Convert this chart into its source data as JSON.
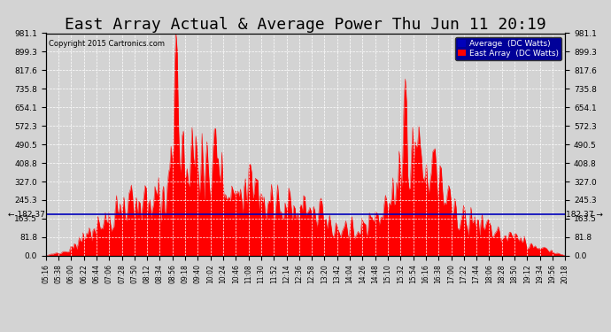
{
  "title": "East Array Actual & Average Power Thu Jun 11 20:19",
  "copyright": "Copyright 2015 Cartronics.com",
  "legend_labels": [
    "Average  (DC Watts)",
    "East Array  (DC Watts)"
  ],
  "legend_colors": [
    "#0000bb",
    "#ff0000"
  ],
  "average_line_value": 182.37,
  "y_ticks": [
    0.0,
    81.8,
    163.5,
    245.3,
    327.0,
    408.8,
    490.5,
    572.3,
    654.1,
    735.8,
    817.6,
    899.3,
    981.1
  ],
  "y_tick_labels": [
    "0.0",
    "81.8",
    "163.5",
    "245.3",
    "327.0",
    "408.8",
    "490.5",
    "572.3",
    "654.1",
    "735.8",
    "817.6",
    "899.3",
    "981.1"
  ],
  "x_tick_labels": [
    "05:16",
    "05:38",
    "06:00",
    "06:22",
    "06:44",
    "07:06",
    "07:28",
    "07:50",
    "08:12",
    "08:34",
    "08:56",
    "09:18",
    "09:40",
    "10:02",
    "10:24",
    "10:46",
    "11:08",
    "11:30",
    "11:52",
    "12:14",
    "12:36",
    "12:58",
    "13:20",
    "13:42",
    "14:04",
    "14:26",
    "14:48",
    "15:10",
    "15:32",
    "15:54",
    "16:16",
    "16:38",
    "17:00",
    "17:22",
    "17:44",
    "18:06",
    "18:28",
    "18:50",
    "19:12",
    "19:34",
    "19:56",
    "20:18"
  ],
  "background_color": "#d3d3d3",
  "plot_bg_color": "#d3d3d3",
  "fill_color": "#ff0000",
  "line_color": "#0000bb",
  "grid_color": "#ffffff",
  "title_fontsize": 13,
  "copyright_fontsize": 7,
  "ymin": 0.0,
  "ymax": 981.1
}
